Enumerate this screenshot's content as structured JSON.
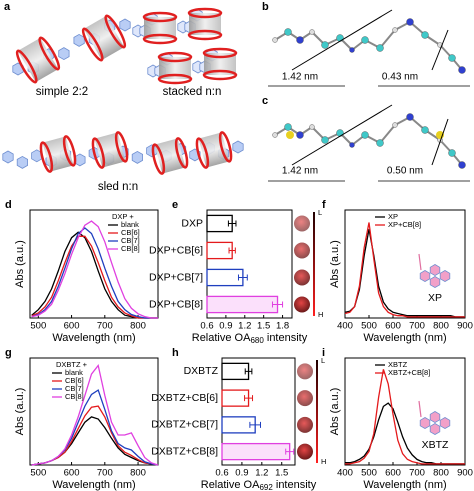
{
  "panels": {
    "a": {
      "label": "a",
      "captions": [
        "simple 2:2",
        "stacked n:n",
        "sled n:n"
      ]
    },
    "b": {
      "label": "b",
      "distances": [
        "1.42 nm",
        "0.43 nm"
      ]
    },
    "c": {
      "label": "c",
      "distances": [
        "1.42 nm",
        "0.50 nm"
      ]
    }
  },
  "chart_data": [
    {
      "type": "line",
      "panel_label": "d",
      "xlabel": "Wavelength (nm)",
      "ylabel": "Abs (a.u.)",
      "legend_title": "DXP +",
      "legend": "upper right",
      "x": [
        480,
        500,
        520,
        540,
        560,
        580,
        600,
        620,
        640,
        660,
        680,
        700,
        720,
        740,
        760,
        780,
        800,
        820,
        840,
        860
      ],
      "xlim": [
        475,
        860
      ],
      "xticks": [
        500,
        600,
        700,
        800
      ],
      "ylim": [
        0,
        0.78
      ],
      "series": [
        {
          "name": "blank",
          "color": "#000000",
          "values": [
            0.02,
            0.06,
            0.12,
            0.21,
            0.34,
            0.48,
            0.58,
            0.62,
            0.58,
            0.48,
            0.34,
            0.21,
            0.12,
            0.06,
            0.02,
            0.01,
            0,
            0,
            0,
            0
          ]
        },
        {
          "name": "CB[6]",
          "color": "#e41a1c",
          "values": [
            0.015,
            0.036,
            0.08,
            0.15,
            0.27,
            0.4,
            0.52,
            0.59,
            0.59,
            0.52,
            0.4,
            0.27,
            0.15,
            0.08,
            0.036,
            0.015,
            0,
            0,
            0,
            0
          ]
        },
        {
          "name": "CB[7]",
          "color": "#1f3fbf",
          "values": [
            0.01,
            0.025,
            0.06,
            0.12,
            0.23,
            0.36,
            0.5,
            0.61,
            0.65,
            0.61,
            0.5,
            0.36,
            0.23,
            0.12,
            0.06,
            0.025,
            0.01,
            0,
            0,
            0
          ]
        },
        {
          "name": "CB[8]",
          "color": "#e040e0",
          "values": [
            0.01,
            0.02,
            0.05,
            0.1,
            0.2,
            0.32,
            0.46,
            0.58,
            0.67,
            0.7,
            0.66,
            0.55,
            0.4,
            0.26,
            0.14,
            0.07,
            0.03,
            0.01,
            0,
            0
          ]
        }
      ]
    },
    {
      "type": "bar",
      "orientation": "horizontal",
      "panel_label": "e",
      "categories": [
        "DXP",
        "DXP+CB[6]",
        "DXP+CB[7]",
        "DXP+CB[8]"
      ],
      "values": [
        1.0,
        1.0,
        1.17,
        1.72
      ],
      "errors": [
        0.06,
        0.05,
        0.07,
        0.08
      ],
      "colors": [
        "#000000",
        "#e41a1c",
        "#1f3fbf",
        "#e040e0"
      ],
      "xlim": [
        0.6,
        1.95
      ],
      "xticks": [
        0.6,
        0.9,
        1.2,
        1.5,
        1.8
      ],
      "xlabel_parts": [
        "Relative OA",
        "680",
        " intensity"
      ],
      "colorbar_labels": [
        "L",
        "H"
      ]
    },
    {
      "type": "line",
      "panel_label": "f",
      "xlabel": "Wavelength (nm)",
      "ylabel": "Abs (a.u.)",
      "legend": "upper center",
      "annotation": "XP",
      "x": [
        400,
        420,
        440,
        460,
        480,
        500,
        520,
        540,
        560,
        580,
        600,
        620,
        640,
        660,
        680,
        700,
        720,
        740,
        760,
        780,
        800,
        820,
        840,
        860,
        880,
        900
      ],
      "xlim": [
        400,
        900
      ],
      "xticks": [
        400,
        500,
        600,
        700,
        800,
        900
      ],
      "ylim": [
        0,
        0.95
      ],
      "series": [
        {
          "name": "XP",
          "color": "#000000",
          "values": [
            0.05,
            0.06,
            0.1,
            0.25,
            0.55,
            0.78,
            0.55,
            0.28,
            0.14,
            0.08,
            0.05,
            0.04,
            0.03,
            0.02,
            0.02,
            0.02,
            0.02,
            0.02,
            0.02,
            0.02,
            0.02,
            0.02,
            0.02,
            0.01,
            0.01,
            0.01
          ]
        },
        {
          "name": "XP+CB[8]",
          "color": "#e41a1c",
          "values": [
            0.04,
            0.05,
            0.1,
            0.28,
            0.62,
            0.84,
            0.52,
            0.22,
            0.1,
            0.05,
            0.03,
            0.02,
            0.02,
            0.01,
            0.01,
            0.01,
            0.01,
            0.01,
            0.01,
            0.01,
            0.01,
            0.01,
            0.01,
            0.01,
            0.01,
            0.01
          ]
        }
      ]
    },
    {
      "type": "line",
      "panel_label": "g",
      "xlabel": "Wavelength (nm)",
      "ylabel": "Abs (a.u.)",
      "legend_title": "DXBTZ +",
      "legend": "upper left",
      "x": [
        480,
        500,
        520,
        540,
        560,
        580,
        600,
        620,
        640,
        660,
        680,
        700,
        720,
        740,
        760,
        780,
        800,
        820,
        840,
        860
      ],
      "xlim": [
        475,
        860
      ],
      "xticks": [
        500,
        600,
        700,
        800
      ],
      "ylim": [
        0,
        1.0
      ],
      "series": [
        {
          "name": "blank",
          "color": "#000000",
          "values": [
            0,
            0.01,
            0.02,
            0.04,
            0.07,
            0.12,
            0.2,
            0.3,
            0.4,
            0.45,
            0.43,
            0.35,
            0.25,
            0.16,
            0.1,
            0.07,
            0.04,
            0.02,
            0.01,
            0
          ]
        },
        {
          "name": "CB[6]",
          "color": "#e41a1c",
          "values": [
            0,
            0.01,
            0.02,
            0.04,
            0.07,
            0.12,
            0.22,
            0.34,
            0.46,
            0.54,
            0.55,
            0.45,
            0.3,
            0.18,
            0.12,
            0.09,
            0.05,
            0.02,
            0.01,
            0
          ]
        },
        {
          "name": "CB[7]",
          "color": "#1f3fbf",
          "values": [
            0,
            0.01,
            0.02,
            0.04,
            0.08,
            0.14,
            0.25,
            0.4,
            0.55,
            0.66,
            0.7,
            0.52,
            0.32,
            0.2,
            0.16,
            0.14,
            0.08,
            0.03,
            0.01,
            0
          ]
        },
        {
          "name": "CB[8]",
          "color": "#e040e0",
          "values": [
            0,
            0.01,
            0.02,
            0.04,
            0.08,
            0.15,
            0.28,
            0.45,
            0.65,
            0.85,
            0.93,
            0.65,
            0.4,
            0.28,
            0.28,
            0.3,
            0.18,
            0.07,
            0.02,
            0
          ]
        }
      ]
    },
    {
      "type": "bar",
      "orientation": "horizontal",
      "panel_label": "h",
      "categories": [
        "DXBTZ",
        "DXBTZ+CB[6]",
        "DXBTZ+CB[7]",
        "DXBTZ+CB[8]"
      ],
      "values": [
        1.0,
        1.0,
        1.1,
        1.62
      ],
      "errors": [
        0.05,
        0.06,
        0.08,
        0.06
      ],
      "colors": [
        "#000000",
        "#e41a1c",
        "#1f3fbf",
        "#e040e0"
      ],
      "xlim": [
        0.6,
        1.7
      ],
      "xticks": [
        0.6,
        0.9,
        1.2,
        1.5
      ],
      "xlabel_parts": [
        "Relative OA",
        "692",
        " intensity"
      ],
      "colorbar_labels": [
        "L",
        "H"
      ]
    },
    {
      "type": "line",
      "panel_label": "i",
      "xlabel": "Wavelength (nm)",
      "ylabel": "Abs (a.u.)",
      "legend": "upper center",
      "annotation": "XBTZ",
      "x": [
        400,
        420,
        440,
        460,
        480,
        500,
        520,
        540,
        560,
        580,
        600,
        620,
        640,
        660,
        680,
        700,
        720,
        740,
        760,
        780,
        800,
        820,
        840,
        860,
        880,
        900
      ],
      "xlim": [
        400,
        900
      ],
      "xticks": [
        400,
        500,
        600,
        700,
        800,
        900
      ],
      "ylim": [
        0,
        0.95
      ],
      "series": [
        {
          "name": "XBTZ",
          "color": "#000000",
          "values": [
            0.02,
            0.02,
            0.03,
            0.05,
            0.08,
            0.14,
            0.25,
            0.4,
            0.52,
            0.55,
            0.5,
            0.38,
            0.25,
            0.15,
            0.09,
            0.05,
            0.03,
            0.02,
            0.02,
            0.01,
            0.01,
            0.01,
            0.01,
            0.01,
            0.01,
            0.01
          ]
        },
        {
          "name": "XBTZ+CB[8]",
          "color": "#e41a1c",
          "values": [
            0.01,
            0.01,
            0.02,
            0.03,
            0.06,
            0.12,
            0.28,
            0.6,
            0.85,
            0.72,
            0.45,
            0.22,
            0.1,
            0.05,
            0.03,
            0.02,
            0.01,
            0.01,
            0.01,
            0.01,
            0.01,
            0.01,
            0.01,
            0.01,
            0.01,
            0.01
          ]
        }
      ]
    }
  ]
}
